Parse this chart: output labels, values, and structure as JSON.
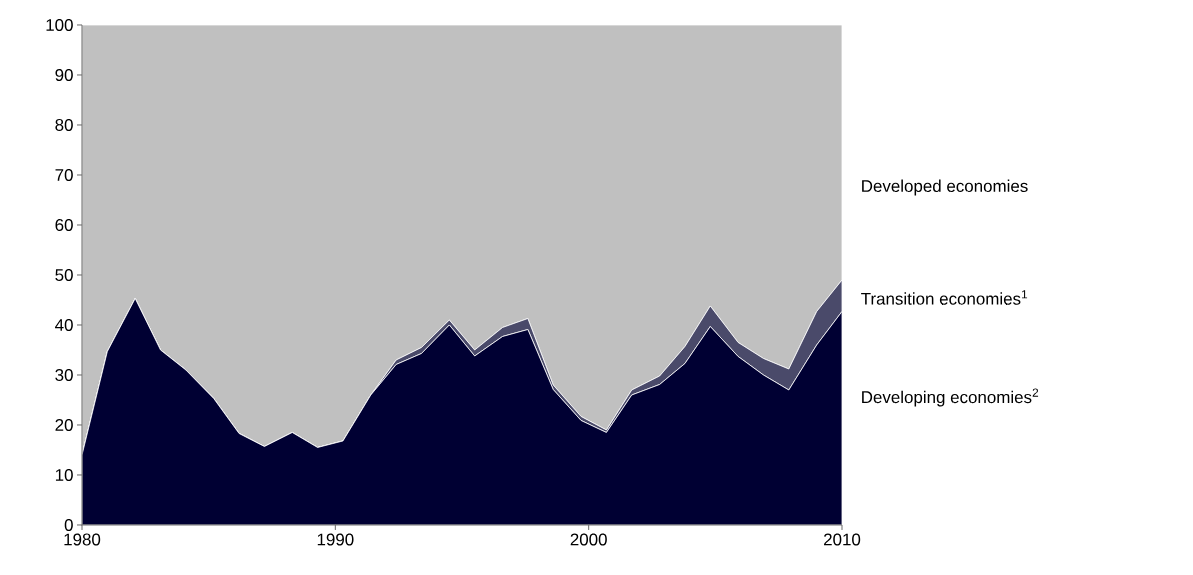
{
  "chart_data": {
    "type": "area",
    "stacked": true,
    "x": [
      1980,
      1981.0,
      1982.1,
      1983.1,
      1984.1,
      1985.2,
      1986.2,
      1987.2,
      1988.3,
      1989.3,
      1990.3,
      1991.4,
      1992.4,
      1993.4,
      1994.5,
      1995.5,
      1996.6,
      1997.6,
      1998.6,
      1999.7,
      2000.7,
      2001.7,
      2002.8,
      2003.8,
      2004.8,
      2005.9,
      2006.9,
      2007.9,
      2009.0,
      2010
    ],
    "xlim": [
      1980,
      2010
    ],
    "xticks": [
      1980,
      1990,
      2000,
      2010
    ],
    "ylim": [
      0,
      100
    ],
    "yticks": [
      0,
      10,
      20,
      30,
      40,
      50,
      60,
      70,
      80,
      90,
      100
    ],
    "series": [
      {
        "name": "Developing economies$^{2}$",
        "color": "#000033",
        "values": [
          14,
          34.7,
          45.3,
          35,
          31,
          25.3,
          18.3,
          15.7,
          18.5,
          15.5,
          16.8,
          26,
          32.1,
          34.3,
          40,
          33.8,
          37.7,
          39.1,
          27.1,
          20.9,
          18.5,
          26,
          28.1,
          32.3,
          39.7,
          33.7,
          30,
          27,
          36,
          42.7
        ]
      },
      {
        "name": "Transition economies$^{1}$",
        "color": "#4a4a6a",
        "values": [
          0,
          0,
          0,
          0,
          0,
          0,
          0,
          0,
          0,
          0,
          0,
          0,
          0.9,
          1.2,
          1,
          1.2,
          1.8,
          2.2,
          0.9,
          0.8,
          0.5,
          1,
          1.7,
          3.4,
          4.1,
          2.8,
          3.3,
          4.2,
          6.7,
          6.3
        ]
      },
      {
        "name": "Developed economies",
        "color": "#c0c0c0",
        "values": [
          86,
          65.3,
          54.7,
          65,
          69,
          74.7,
          81.7,
          84.3,
          81.5,
          84.5,
          83.2,
          74,
          67,
          64.5,
          59,
          65,
          60.5,
          58.7,
          72,
          78.3,
          81,
          73,
          70.2,
          64.3,
          56.2,
          63.5,
          66.7,
          68.8,
          57.3,
          51
        ]
      }
    ]
  }
}
